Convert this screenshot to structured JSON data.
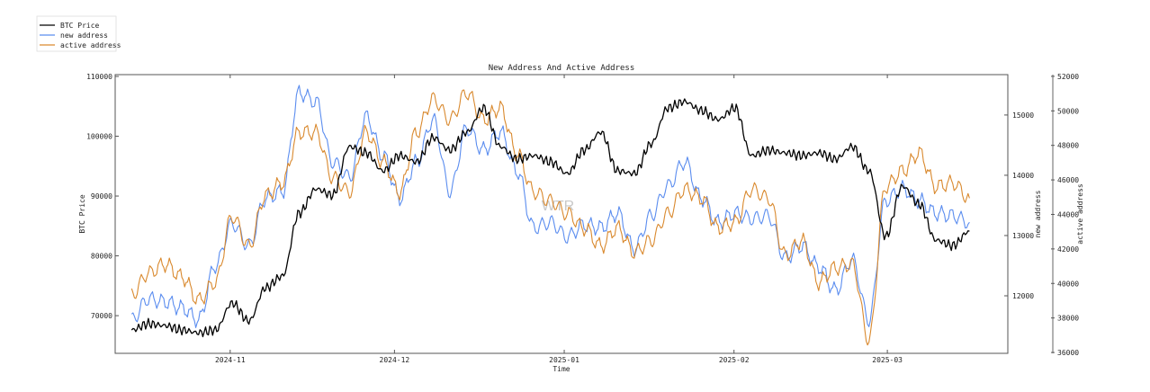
{
  "chart_data": {
    "type": "line",
    "title": "New Address And Active Address",
    "xlabel": "Time",
    "watermark": "WTR",
    "x_start": "2024-10-14",
    "x_end": "2025-03-16",
    "x_range": [
      "2024-10-11",
      "2025-03-23"
    ],
    "x_ticks": [
      {
        "date": "2024-11-01",
        "label": "2024-11"
      },
      {
        "date": "2024-12-01",
        "label": "2024-12"
      },
      {
        "date": "2025-01-01",
        "label": "2025-01"
      },
      {
        "date": "2025-02-01",
        "label": "2025-02"
      },
      {
        "date": "2025-03-01",
        "label": "2025-03"
      }
    ],
    "axes": {
      "left": {
        "label": "BTC Price",
        "ylim": [
          63700,
          110300
        ],
        "ticks": [
          70000,
          80000,
          90000,
          100000,
          110000
        ]
      },
      "right1": {
        "label": "new address",
        "ylim": [
          11045,
          15670
        ],
        "ticks": [
          12000,
          13000,
          14000,
          15000
        ]
      },
      "right2": {
        "label": "active address",
        "ylim": [
          35950,
          52100
        ],
        "ticks": [
          36000,
          38000,
          40000,
          42000,
          44000,
          46000,
          48000,
          50000,
          52000
        ]
      }
    },
    "legend": {
      "position": "top-left, outside"
    },
    "series": [
      {
        "name": "BTC Price",
        "axis": "left",
        "color": "#000000",
        "values": [
          67590,
          68640,
          68340,
          67590,
          67140,
          67590,
          72100,
          69100,
          74660,
          76610,
          87140,
          91200,
          90150,
          98270,
          97220,
          94210,
          96760,
          95710,
          99770,
          97670,
          100680,
          104740,
          98270,
          96160,
          96760,
          95710,
          93760,
          97670,
          100680,
          94210,
          93760,
          98720,
          104740,
          105790,
          104290,
          102780,
          104740,
          96760,
          97670,
          97220,
          96760,
          97220,
          96160,
          98270,
          94210,
          83230,
          91650,
          88640,
          82630,
          81720,
          84130
        ]
      },
      {
        "name": "new address",
        "axis": "right1",
        "color": "#5b8def",
        "values": [
          11600,
          11950,
          11900,
          11800,
          11600,
          12500,
          13200,
          12830,
          13620,
          13730,
          15370,
          15220,
          14220,
          13970,
          14970,
          14330,
          13620,
          14220,
          14920,
          13730,
          14780,
          14420,
          14720,
          14070,
          13130,
          13220,
          12980,
          13180,
          13130,
          13370,
          12780,
          13330,
          13820,
          14220,
          13620,
          13220,
          13370,
          13280,
          13330,
          12630,
          12830,
          12480,
          12090,
          12600,
          11600,
          13580,
          13780,
          13580,
          13370,
          13330,
          13220
        ]
      },
      {
        "name": "active address",
        "axis": "right2",
        "color": "#d9892e",
        "values": [
          39340,
          40600,
          41120,
          40390,
          39030,
          40070,
          43890,
          42170,
          45100,
          45830,
          48760,
          48760,
          46140,
          45300,
          48760,
          47030,
          45300,
          48760,
          50690,
          49490,
          51060,
          49490,
          50170,
          47550,
          45300,
          44780,
          44050,
          43210,
          42170,
          43210,
          41800,
          42480,
          44050,
          45460,
          44940,
          43210,
          43530,
          45460,
          44940,
          41640,
          42480,
          40070,
          40910,
          41120,
          36730,
          45620,
          46510,
          47550,
          45620,
          45830,
          44940
        ]
      }
    ]
  }
}
